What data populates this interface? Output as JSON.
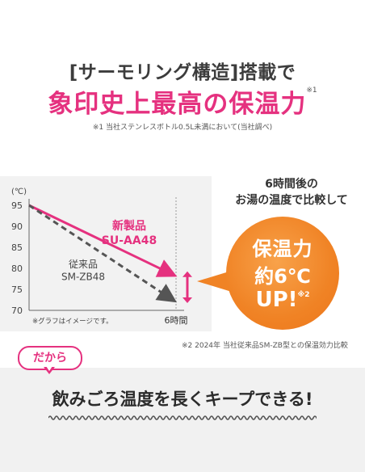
{
  "headline": {
    "line1": "[サーモリング構造]搭載で",
    "line2": "象印史上最高の保温力",
    "line2_mark": "※1",
    "footnote": "※1 当社ステンレスボトル0.5L未満において(当社調べ)"
  },
  "compare_note": {
    "line1": "6時間後の",
    "line2": "お湯の温度で比較して"
  },
  "badge": {
    "line1": "保温力",
    "line2": "約6℃",
    "line3": "UP!",
    "mark": "※2"
  },
  "footnote2": "※2 2024年 当社従来品SM-ZB型との保温効力比較",
  "dakara": "だから",
  "tagline": "飲みごろ温度を長くキープできる!",
  "colors": {
    "pink": "#e5317f",
    "orange": "#f08325",
    "gray_series": "#555555"
  },
  "chart_data": {
    "type": "line",
    "ylabel": "(℃)",
    "ylim": [
      70,
      95
    ],
    "yticks": [
      95,
      90,
      85,
      80,
      75,
      70
    ],
    "x": [
      0,
      6
    ],
    "xtick_label": "6時間",
    "note": "※グラフはイメージです。",
    "series": [
      {
        "name": "新製品",
        "model": "SU-AA48",
        "color": "#e5317f",
        "dash": false,
        "values": [
          95,
          78.5
        ]
      },
      {
        "name": "従来品",
        "model": "SM-ZB48",
        "color": "#555555",
        "dash": true,
        "values": [
          95,
          72.5
        ]
      }
    ],
    "arrow_icon": "double-arrow-icon",
    "grid": false
  }
}
